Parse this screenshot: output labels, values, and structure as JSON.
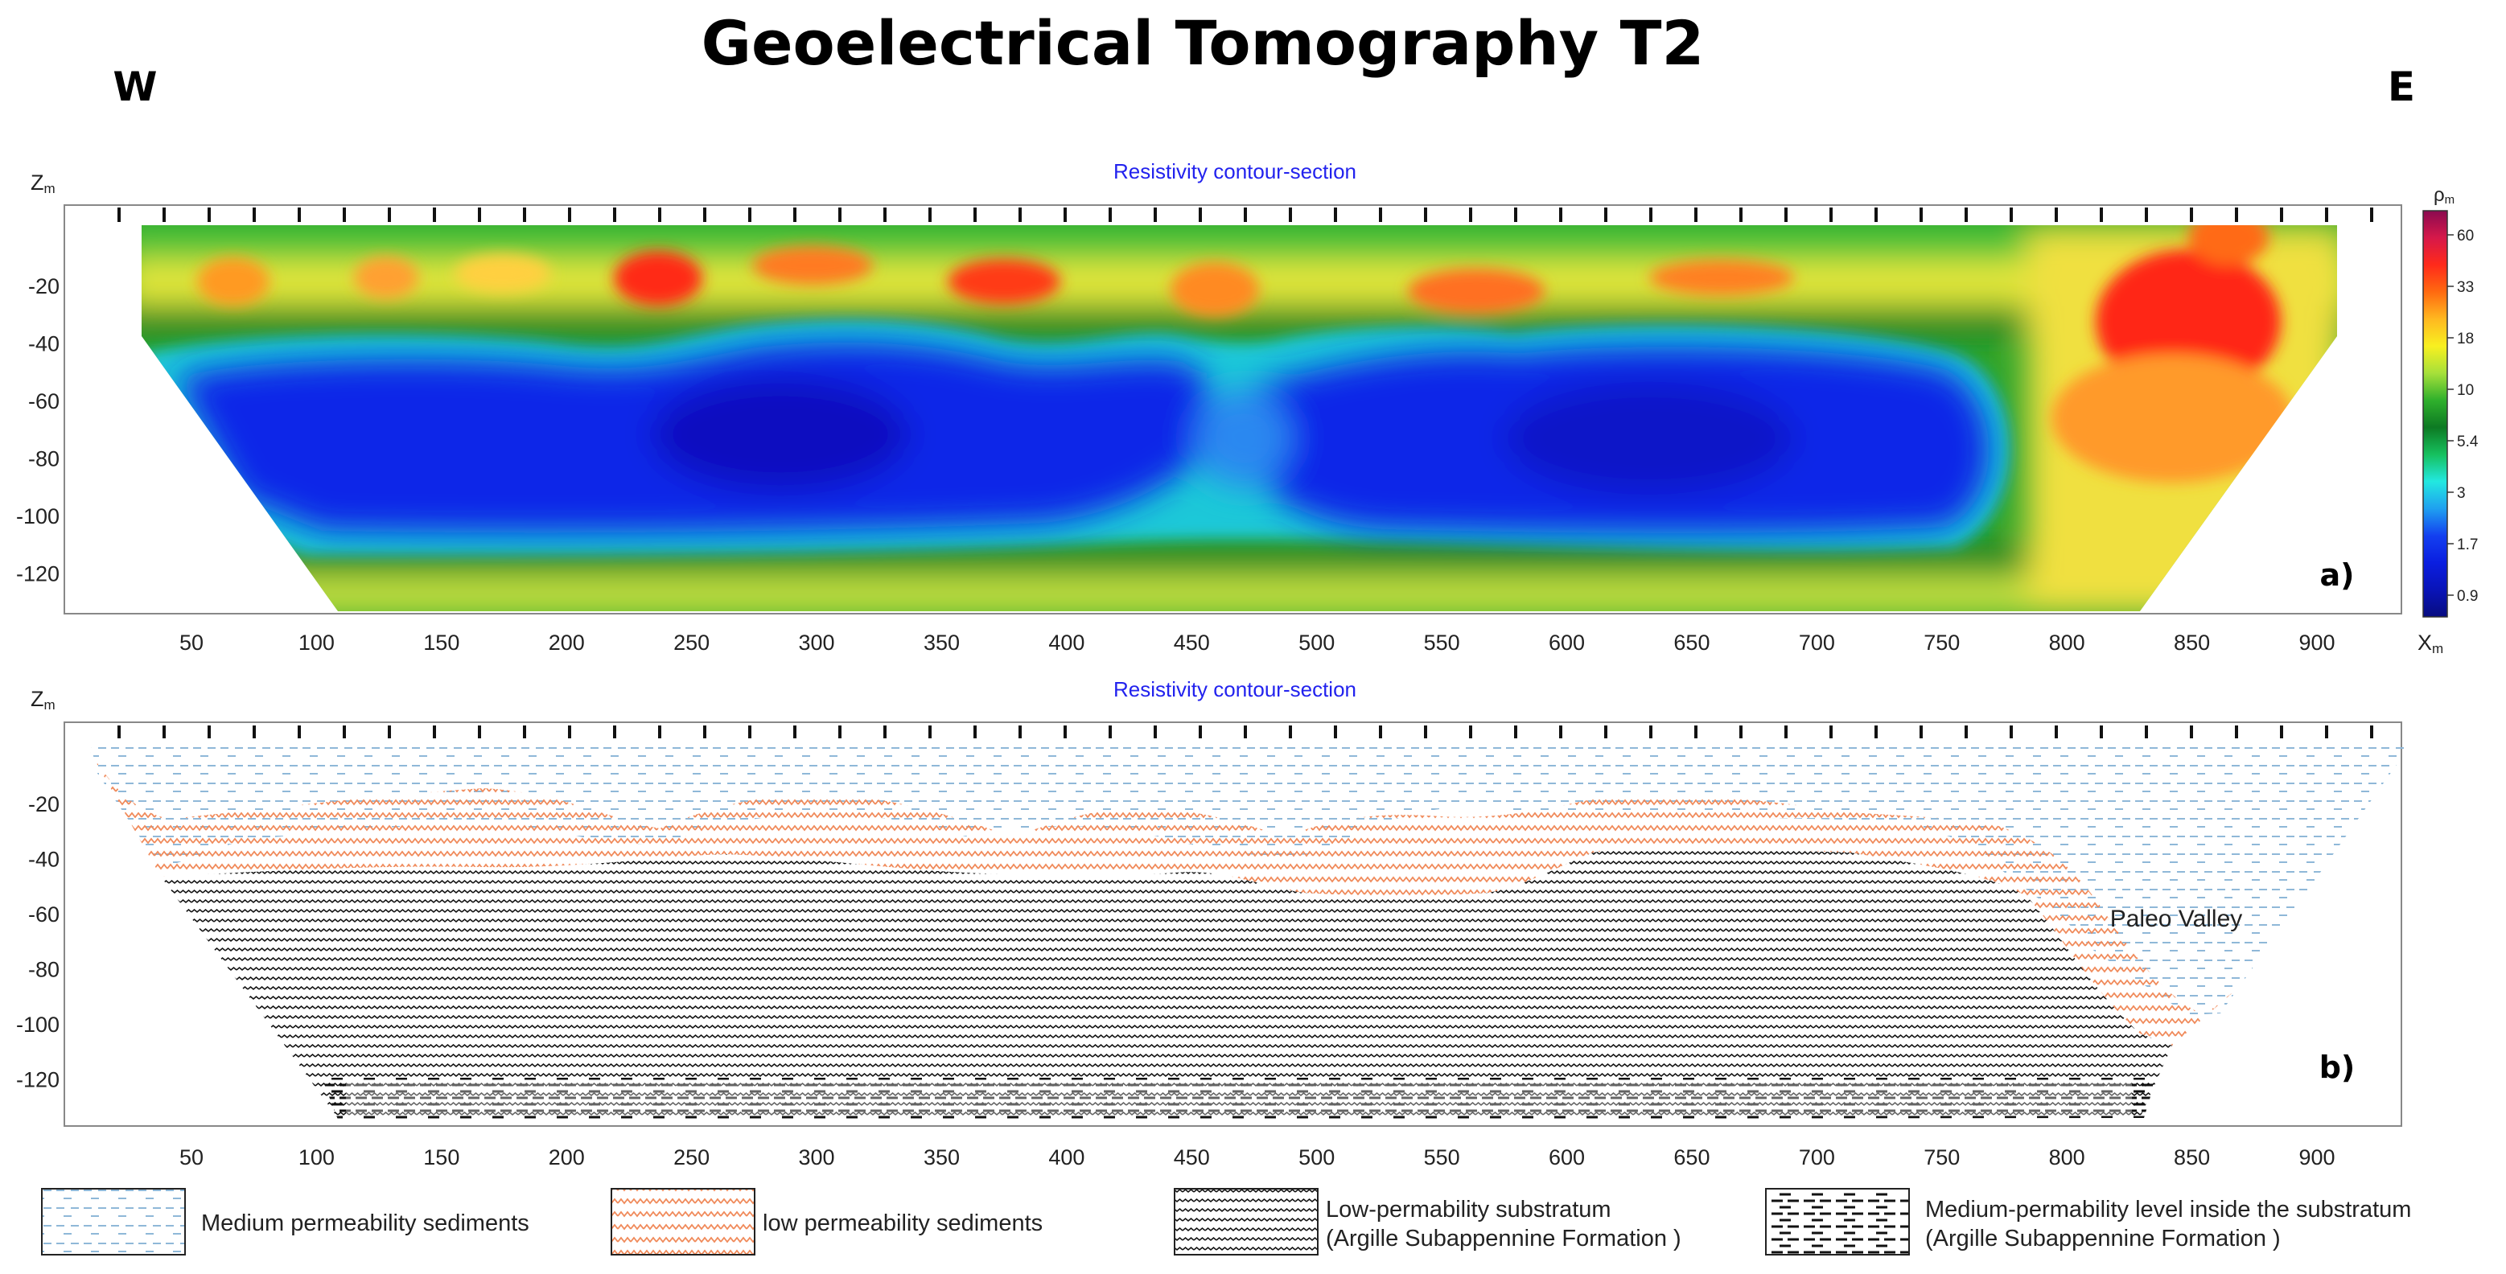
{
  "figure": {
    "title": "Geoelectrical Tomography T2",
    "west_label": "W",
    "east_label": "E"
  },
  "panel_a": {
    "subtitle": "Resistivity contour-section",
    "z_axis_label": "Z",
    "z_axis_sub": "m",
    "x_axis_label": "X",
    "x_axis_sub": "m",
    "tag": "a)",
    "colorbar": {
      "title": "ρ",
      "title_sub": "m",
      "ticks": [
        "60",
        "33",
        "18",
        "10",
        "5.4",
        "3",
        "1.7",
        "0.9"
      ],
      "colors": [
        "#8b0a50",
        "#d6184a",
        "#ff2a1a",
        "#ff6a10",
        "#ffb820",
        "#f8f020",
        "#a6e03a",
        "#2fb02c",
        "#0d7a23",
        "#16c05e",
        "#22e8e0",
        "#1fa0f0",
        "#1340f0",
        "#0a1ee0",
        "#0914b8",
        "#080c80"
      ]
    },
    "x_ticks": [
      "50",
      "100",
      "150",
      "200",
      "250",
      "300",
      "350",
      "400",
      "450",
      "500",
      "550",
      "600",
      "650",
      "700",
      "750",
      "800",
      "850",
      "900"
    ],
    "z_ticks": [
      "-20",
      "-40",
      "-60",
      "-80",
      "-100",
      "-120"
    ]
  },
  "panel_b": {
    "subtitle": "Resistivity contour-section",
    "z_axis_label": "Z",
    "z_axis_sub": "m",
    "tag": "b)",
    "annotation": "Paleo Valley",
    "x_ticks": [
      "50",
      "100",
      "150",
      "200",
      "250",
      "300",
      "350",
      "400",
      "450",
      "500",
      "550",
      "600",
      "650",
      "700",
      "750",
      "800",
      "850",
      "900"
    ],
    "z_ticks": [
      "-20",
      "-40",
      "-60",
      "-80",
      "-100",
      "-120"
    ]
  },
  "legend": [
    {
      "lines": [
        "Medium permeability sediments"
      ],
      "pattern": "pat-med"
    },
    {
      "lines": [
        "low permeability sediments"
      ],
      "pattern": "pat-low"
    },
    {
      "lines": [
        "Low-permability substratum",
        "(Argille Subappennine Formation )"
      ],
      "pattern": "pat-sub"
    },
    {
      "lines": [
        "Medium-permability level inside the substratum",
        "(Argille Subappennine Formation )"
      ],
      "pattern": "pat-dash"
    }
  ],
  "colors": {
    "low_perm_pattern": "#f08a5a",
    "med_perm_pattern": "#8fb8d8",
    "substratum_pattern": "#111111",
    "subtitle": "#2222ee"
  }
}
